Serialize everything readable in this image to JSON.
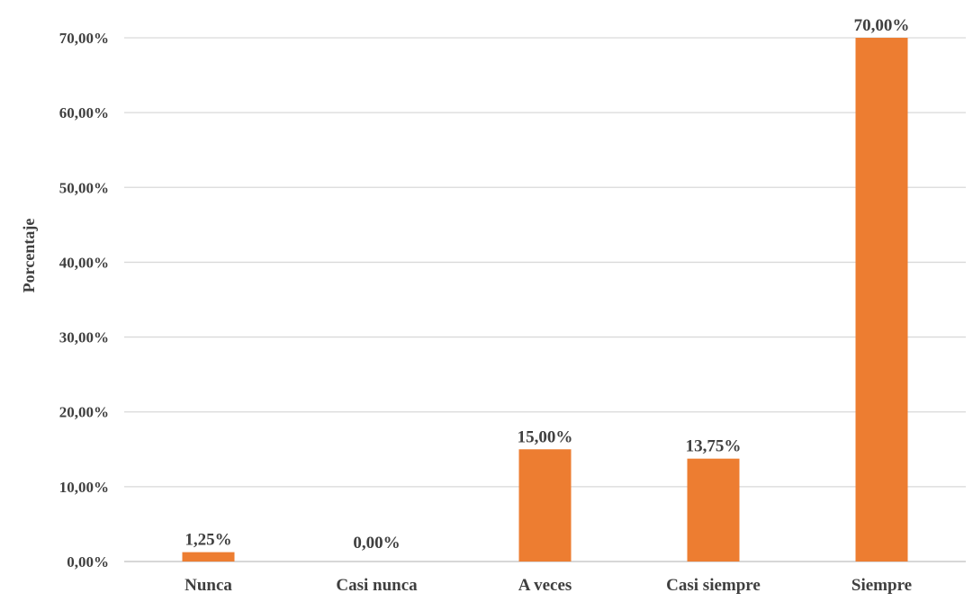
{
  "chart_data": {
    "type": "bar",
    "title": "",
    "xlabel": "",
    "ylabel": "Porcentaje",
    "categories": [
      "Nunca",
      "Casi nunca",
      "A veces",
      "Casi siempre",
      "Siempre"
    ],
    "values": [
      1.25,
      0,
      15,
      13.75,
      70
    ],
    "data_labels": [
      "1,25%",
      "0,00%",
      "15,00%",
      "13,75%",
      "70,00%"
    ],
    "ylim": [
      0,
      70
    ],
    "yticks": [
      0,
      10,
      20,
      30,
      40,
      50,
      60,
      70
    ],
    "ytick_labels": [
      "0,00%",
      "10,00%",
      "20,00%",
      "30,00%",
      "40,00%",
      "50,00%",
      "60,00%",
      "70,00%"
    ],
    "grid": true,
    "legend": "none",
    "bar_color": "#ED7D31"
  }
}
